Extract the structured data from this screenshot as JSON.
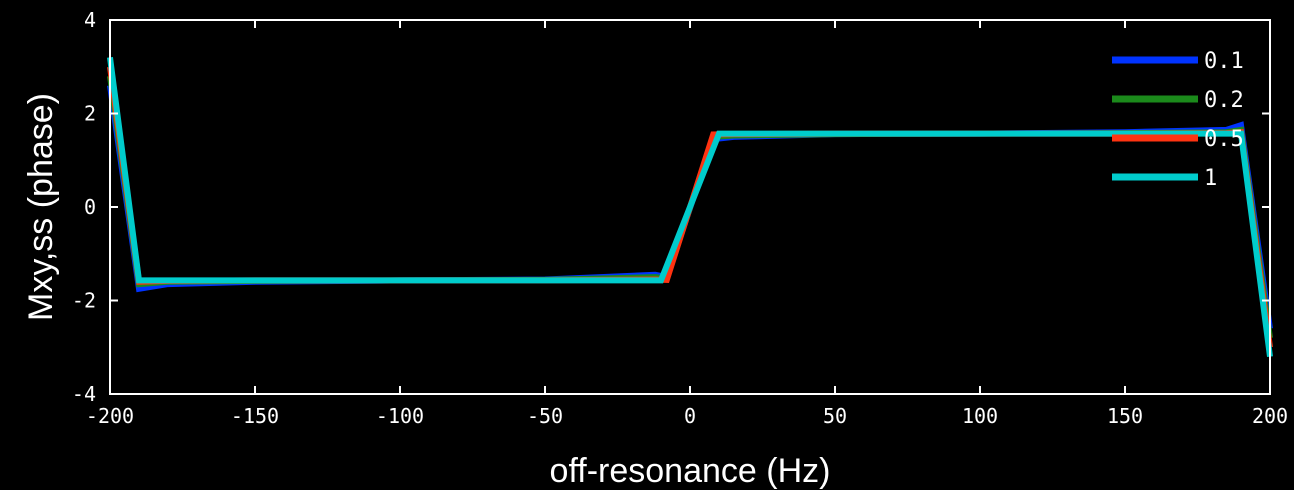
{
  "chart_data": {
    "type": "line",
    "title": "",
    "xlabel": "off-resonance (Hz)",
    "ylabel": "Mxy,ss (phase)",
    "xlim": [
      -200,
      200
    ],
    "ylim": [
      -4,
      4
    ],
    "xticks": [
      -200,
      -150,
      -100,
      -50,
      0,
      50,
      100,
      150,
      200
    ],
    "yticks": [
      -4,
      -2,
      0,
      2,
      4
    ],
    "grid": false,
    "legend_position": "top-right",
    "series": [
      {
        "name": "0.1",
        "color": "#0033ff",
        "points": [
          [
            -200,
            2.6
          ],
          [
            -190,
            -1.75
          ],
          [
            -180,
            -1.65
          ],
          [
            -150,
            -1.6
          ],
          [
            -100,
            -1.57
          ],
          [
            -50,
            -1.55
          ],
          [
            -12,
            -1.45
          ],
          [
            -8,
            -1.5
          ],
          [
            8,
            1.45
          ],
          [
            15,
            1.5
          ],
          [
            50,
            1.56
          ],
          [
            100,
            1.57
          ],
          [
            150,
            1.6
          ],
          [
            185,
            1.65
          ],
          [
            190,
            1.75
          ],
          [
            200,
            -2.6
          ]
        ]
      },
      {
        "name": "0.2",
        "color": "#1b8a1b",
        "points": [
          [
            -200,
            2.8
          ],
          [
            -190,
            -1.65
          ],
          [
            -180,
            -1.6
          ],
          [
            -150,
            -1.58
          ],
          [
            -100,
            -1.57
          ],
          [
            -50,
            -1.56
          ],
          [
            -12,
            -1.5
          ],
          [
            -8,
            -1.53
          ],
          [
            8,
            1.5
          ],
          [
            15,
            1.53
          ],
          [
            50,
            1.56
          ],
          [
            100,
            1.57
          ],
          [
            150,
            1.58
          ],
          [
            185,
            1.6
          ],
          [
            190,
            1.65
          ],
          [
            200,
            -2.8
          ]
        ]
      },
      {
        "name": "0.5",
        "color": "#ff3311",
        "points": [
          [
            -200,
            3.0
          ],
          [
            -190,
            -1.6
          ],
          [
            -180,
            -1.58
          ],
          [
            -150,
            -1.57
          ],
          [
            -100,
            -1.57
          ],
          [
            -50,
            -1.57
          ],
          [
            -12,
            -1.55
          ],
          [
            -8,
            -1.56
          ],
          [
            8,
            1.55
          ],
          [
            15,
            1.56
          ],
          [
            50,
            1.57
          ],
          [
            100,
            1.57
          ],
          [
            150,
            1.57
          ],
          [
            185,
            1.58
          ],
          [
            190,
            1.6
          ],
          [
            200,
            -3.0
          ]
        ]
      },
      {
        "name": "1",
        "color": "#00cccc",
        "points": [
          [
            -200,
            3.2
          ],
          [
            -190,
            -1.57
          ],
          [
            -100,
            -1.57
          ],
          [
            -10,
            -1.57
          ],
          [
            10,
            1.57
          ],
          [
            100,
            1.57
          ],
          [
            190,
            1.57
          ],
          [
            200,
            -3.2
          ]
        ]
      }
    ]
  }
}
